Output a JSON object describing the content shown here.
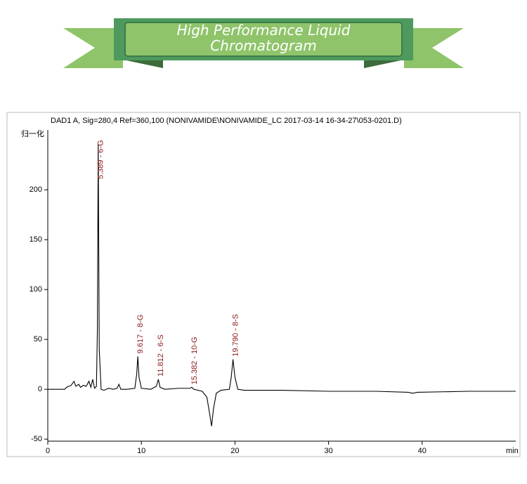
{
  "chart_data": {
    "type": "line",
    "title": "High Performance Liquid Chromatogram",
    "subtitle": "DAD1 A, Sig=280,4 Ref=360,100 (NONIVAMIDE\\NONIVAMIDE_LC 2017-03-14 16-34-27\\053-0201.D)",
    "y_label": "归一化",
    "x_label": "min",
    "color": "#000000",
    "x": [
      0,
      1.8,
      2.0,
      2.5,
      2.8,
      3.0,
      3.3,
      3.5,
      3.8,
      4.1,
      4.4,
      4.6,
      4.8,
      5.0,
      5.2,
      5.3,
      5.389,
      5.5,
      5.7,
      6.0,
      6.5,
      7.0,
      7.4,
      7.6,
      7.8,
      8.5,
      9.3,
      9.5,
      9.617,
      9.75,
      10.0,
      11.0,
      11.6,
      11.812,
      12.0,
      12.5,
      14.0,
      15.2,
      15.382,
      15.6,
      16.5,
      17.0,
      17.3,
      17.5,
      17.7,
      18.0,
      18.5,
      19.4,
      19.6,
      19.79,
      20.0,
      20.3,
      21.0,
      25.0,
      30.0,
      35.0,
      38.5,
      39.0,
      39.5,
      45.0,
      50.0
    ],
    "values": [
      0,
      0,
      2,
      4,
      8,
      3,
      5,
      2,
      4,
      3,
      8,
      2,
      10,
      1,
      3,
      60,
      246,
      40,
      0,
      -1,
      1,
      0,
      1,
      5,
      0,
      0,
      1,
      15,
      33,
      12,
      1,
      0,
      3,
      10,
      2,
      0,
      1,
      1,
      2,
      0,
      -2,
      -8,
      -25,
      -37,
      -20,
      -4,
      -1,
      0,
      12,
      30,
      12,
      0,
      -1,
      -1,
      -2,
      -2,
      -3,
      -4,
      -3,
      -2,
      -2
    ],
    "xlim": [
      0,
      50
    ],
    "ylim": [
      -52,
      260
    ],
    "xticks": [
      0,
      10,
      20,
      30,
      40
    ],
    "yticks": [
      -50,
      0,
      50,
      100,
      150,
      200
    ],
    "annotations": [
      {
        "text": "5.389 - 6-G",
        "x": 5.389,
        "y": 246
      },
      {
        "text": "9.617 - 8-G",
        "x": 9.617,
        "y": 33
      },
      {
        "text": "11.812 - 6-S",
        "x": 11.812,
        "y": 10
      },
      {
        "text": "15.382 - 10-G",
        "x": 15.382,
        "y": 2
      },
      {
        "text": "19.790 - 8-S",
        "x": 19.79,
        "y": 30
      }
    ],
    "annotation_color": "#8b1a1a"
  }
}
